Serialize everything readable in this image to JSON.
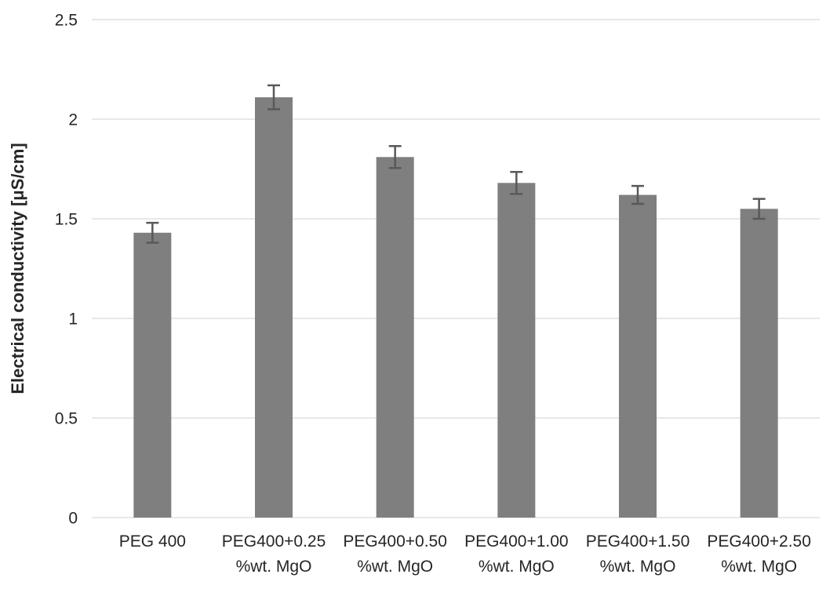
{
  "chart_data": {
    "type": "bar",
    "title": "",
    "xlabel": "",
    "ylabel": "Electrical conductivity [μS/cm]",
    "ylim": [
      0,
      2.5
    ],
    "yticks": [
      0,
      0.5,
      1,
      1.5,
      2,
      2.5
    ],
    "ytick_labels": [
      "0",
      "0.5",
      "1",
      "1.5",
      "2",
      "2.5"
    ],
    "grid": true,
    "legend": false,
    "categories": [
      "PEG 400",
      "PEG400+0.25 %wt. MgO",
      "PEG400+0.50 %wt. MgO",
      "PEG400+1.00 %wt. MgO",
      "PEG400+1.50 %wt. MgO",
      "PEG400+2.50 %wt. MgO"
    ],
    "category_lines": [
      [
        "PEG 400"
      ],
      [
        "PEG400+0.25",
        "%wt. MgO"
      ],
      [
        "PEG400+0.50",
        "%wt. MgO"
      ],
      [
        "PEG400+1.00",
        "%wt. MgO"
      ],
      [
        "PEG400+1.50",
        "%wt. MgO"
      ],
      [
        "PEG400+2.50",
        "%wt. MgO"
      ]
    ],
    "series": [
      {
        "name": "Electrical conductivity",
        "values": [
          1.43,
          2.11,
          1.81,
          1.68,
          1.62,
          1.55
        ],
        "errors": [
          0.05,
          0.06,
          0.055,
          0.055,
          0.045,
          0.05
        ]
      }
    ],
    "colors": {
      "bar": "#7f7f7f",
      "error_bar": "#595959",
      "gridline": "#d9d9d9",
      "text": "#262626",
      "background": "#ffffff"
    }
  }
}
